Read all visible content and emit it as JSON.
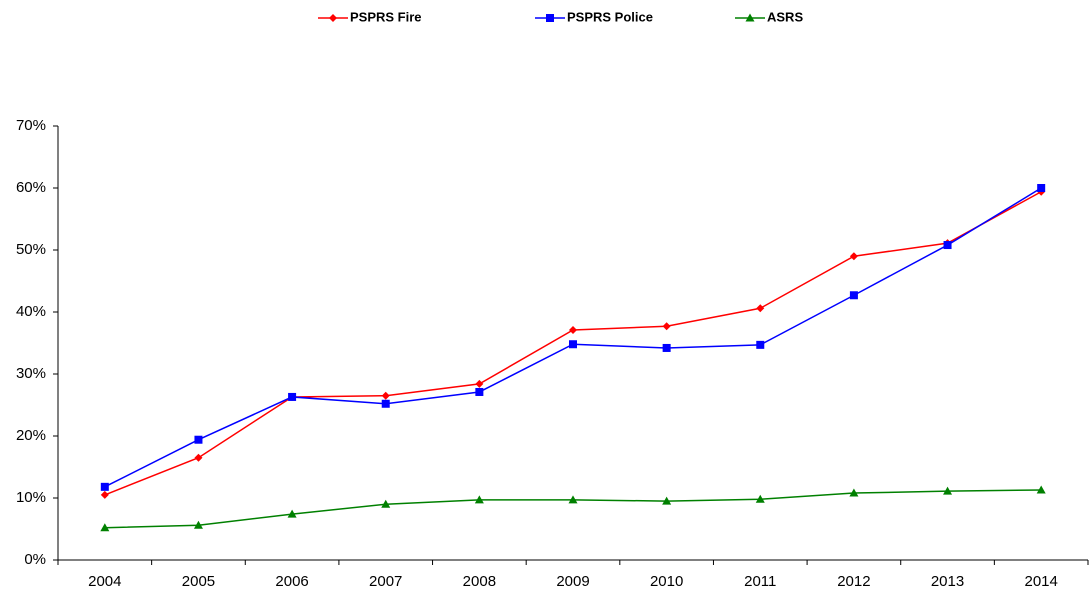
{
  "chart_data": {
    "type": "line",
    "categories": [
      "2004",
      "2005",
      "2006",
      "2007",
      "2008",
      "2009",
      "2010",
      "2011",
      "2012",
      "2013",
      "2014"
    ],
    "series": [
      {
        "name": "PSPRS Fire",
        "color": "#ff0000",
        "marker": "diamond",
        "values": [
          10.5,
          16.5,
          26.3,
          26.5,
          28.4,
          37.1,
          37.7,
          40.6,
          49.0,
          51.1,
          59.4
        ]
      },
      {
        "name": "PSPRS Police",
        "color": "#0000ff",
        "marker": "square",
        "values": [
          11.8,
          19.4,
          26.3,
          25.2,
          27.1,
          34.8,
          34.2,
          34.7,
          42.7,
          50.8,
          60.0
        ]
      },
      {
        "name": "ASRS",
        "color": "#008000",
        "marker": "triangle",
        "values": [
          5.2,
          5.6,
          7.4,
          9.0,
          9.7,
          9.7,
          9.5,
          9.8,
          10.8,
          11.1,
          11.3
        ]
      }
    ],
    "ylim": [
      0,
      70
    ],
    "yticks": [
      {
        "value": 0,
        "label": "0%"
      },
      {
        "value": 10,
        "label": "10%"
      },
      {
        "value": 20,
        "label": "20%"
      },
      {
        "value": 30,
        "label": "30%"
      },
      {
        "value": 40,
        "label": "40%"
      },
      {
        "value": 50,
        "label": "50%"
      },
      {
        "value": 60,
        "label": "60%"
      },
      {
        "value": 70,
        "label": "70%"
      }
    ],
    "grid": false,
    "legend": "top"
  }
}
